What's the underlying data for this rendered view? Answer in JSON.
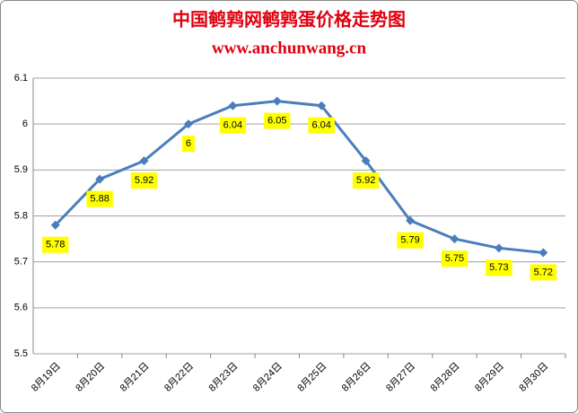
{
  "chart_data": {
    "type": "line",
    "title": "中国鹌鹑网鹌鹑蛋价格走势图",
    "subtitle": "www.anchunwang.cn",
    "categories": [
      "8月19日",
      "8月20日",
      "8月21日",
      "8月22日",
      "8月23日",
      "8月24日",
      "8月25日",
      "8月26日",
      "8月27日",
      "8月28日",
      "8月29日",
      "8月30日"
    ],
    "series": [
      {
        "color": "#4a7ebb",
        "values": [
          5.78,
          5.88,
          5.92,
          6,
          6.04,
          6.05,
          6.04,
          5.92,
          5.79,
          5.75,
          5.73,
          5.72
        ]
      }
    ],
    "ylim": [
      5.5,
      6.1
    ],
    "yticks": [
      5.5,
      5.6,
      5.7,
      5.8,
      5.9,
      6,
      6.1
    ],
    "grid": true
  }
}
